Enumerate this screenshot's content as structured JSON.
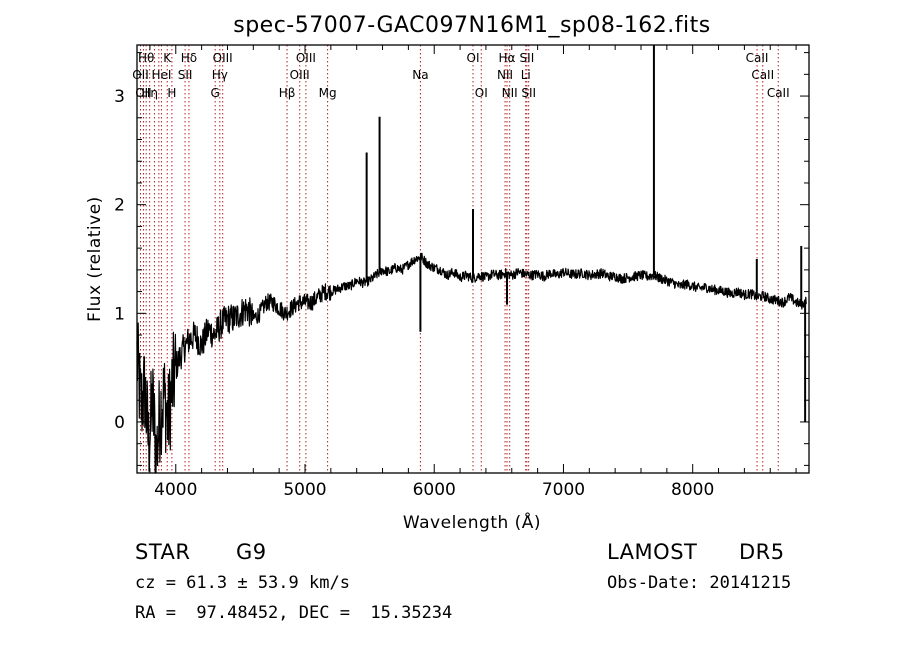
{
  "chart_data": {
    "type": "line",
    "title": "spec-57007-GAC097N16M1_sp08-162.fits",
    "xlabel": "Wavelength (Å)",
    "ylabel": "Flux (relative)",
    "xlim": [
      3700,
      8900
    ],
    "ylim": [
      -0.47,
      3.47
    ],
    "xticks": [
      4000,
      5000,
      6000,
      7000,
      8000
    ],
    "yticks": [
      0,
      1,
      2,
      3
    ],
    "grid": false,
    "line_color": "#000000",
    "marker_line_color": "#b22222",
    "series": [
      {
        "x": [
          3700,
          3730,
          3760,
          3790,
          3820,
          3850,
          3880,
          3910,
          3940,
          3970,
          4000,
          4050,
          4100,
          4150,
          4200,
          4250,
          4300,
          4350,
          4400,
          4450,
          4500,
          4550,
          4600,
          4650,
          4700,
          4750,
          4800,
          4850,
          4900,
          4950,
          5000,
          5050,
          5100,
          5150,
          5200,
          5250,
          5300,
          5350,
          5400,
          5450,
          5500,
          5550,
          5600,
          5650,
          5700,
          5750,
          5800,
          5850,
          5900,
          5950,
          6000,
          6050,
          6100,
          6150,
          6200,
          6250,
          6300,
          6350,
          6400,
          6450,
          6500,
          6550,
          6600,
          6650,
          6700,
          6750,
          6800,
          6850,
          6900,
          6950,
          7000,
          7050,
          7100,
          7150,
          7200,
          7250,
          7300,
          7350,
          7400,
          7450,
          7500,
          7550,
          7600,
          7650,
          7700,
          7750,
          7800,
          7850,
          7900,
          7950,
          8000,
          8050,
          8100,
          8150,
          8200,
          8250,
          8300,
          8350,
          8400,
          8450,
          8500,
          8550,
          8600,
          8650,
          8700,
          8750,
          8800,
          8850,
          8880
        ],
        "y": [
          0.6,
          0.15,
          0.3,
          -0.2,
          0.2,
          -0.3,
          0.1,
          0.25,
          0.0,
          0.3,
          0.5,
          0.65,
          0.75,
          0.8,
          0.7,
          0.85,
          0.8,
          0.9,
          0.95,
          0.95,
          1.0,
          1.05,
          0.95,
          1.0,
          1.1,
          1.1,
          1.05,
          1.0,
          1.05,
          1.1,
          1.1,
          1.1,
          1.15,
          1.2,
          1.2,
          1.22,
          1.25,
          1.25,
          1.3,
          1.28,
          1.3,
          1.35,
          1.4,
          1.38,
          1.42,
          1.4,
          1.45,
          1.5,
          1.52,
          1.45,
          1.42,
          1.4,
          1.35,
          1.38,
          1.33,
          1.35,
          1.32,
          1.35,
          1.33,
          1.36,
          1.35,
          1.37,
          1.35,
          1.38,
          1.36,
          1.35,
          1.36,
          1.34,
          1.37,
          1.35,
          1.38,
          1.36,
          1.36,
          1.37,
          1.35,
          1.36,
          1.37,
          1.34,
          1.34,
          1.32,
          1.33,
          1.34,
          1.35,
          1.34,
          1.35,
          1.32,
          1.3,
          1.28,
          1.25,
          1.27,
          1.25,
          1.23,
          1.24,
          1.22,
          1.21,
          1.2,
          1.18,
          1.2,
          1.17,
          1.18,
          1.15,
          1.16,
          1.13,
          1.12,
          1.1,
          1.15,
          1.1,
          1.08,
          1.12
        ],
        "spikes": [
          {
            "x": 5477,
            "y": 2.48
          },
          {
            "x": 5577,
            "y": 2.81
          },
          {
            "x": 5893,
            "y": 0.83
          },
          {
            "x": 6300,
            "y": 1.96
          },
          {
            "x": 6563,
            "y": 1.08
          },
          {
            "x": 7700,
            "y": 3.47
          },
          {
            "x": 8496,
            "y": 1.5
          },
          {
            "x": 8840,
            "y": 1.62
          },
          {
            "x": 8870,
            "y": 0.0
          }
        ]
      }
    ],
    "line_markers": [
      {
        "x": 3727,
        "label": "OII",
        "row": 1
      },
      {
        "x": 3750,
        "label": "OII",
        "row": 2
      },
      {
        "x": 3771,
        "label": "Hθ",
        "row": 0
      },
      {
        "x": 3798,
        "label": "Hη",
        "row": 2
      },
      {
        "x": 3835,
        "label": "",
        "row": 0
      },
      {
        "x": 3869,
        "label": "",
        "row": 0
      },
      {
        "x": 3889,
        "label": "HeI",
        "row": 1
      },
      {
        "x": 3934,
        "label": "K",
        "row": 0
      },
      {
        "x": 3970,
        "label": "H",
        "row": 2
      },
      {
        "x": 4072,
        "label": "SII",
        "row": 1
      },
      {
        "x": 4102,
        "label": "Hδ",
        "row": 0
      },
      {
        "x": 4305,
        "label": "G",
        "row": 2
      },
      {
        "x": 4341,
        "label": "Hγ",
        "row": 1
      },
      {
        "x": 4363,
        "label": "OIII",
        "row": 0
      },
      {
        "x": 4861,
        "label": "Hβ",
        "row": 2
      },
      {
        "x": 4959,
        "label": "OIII",
        "row": 1
      },
      {
        "x": 5007,
        "label": "OIII",
        "row": 0
      },
      {
        "x": 5175,
        "label": "Mg",
        "row": 2
      },
      {
        "x": 5893,
        "label": "Na",
        "row": 1
      },
      {
        "x": 6300,
        "label": "OI",
        "row": 0
      },
      {
        "x": 6364,
        "label": "OI",
        "row": 2
      },
      {
        "x": 6548,
        "label": "NII",
        "row": 1
      },
      {
        "x": 6563,
        "label": "Hα",
        "row": 0
      },
      {
        "x": 6584,
        "label": "NII",
        "row": 2
      },
      {
        "x": 6708,
        "label": "Li",
        "row": 1
      },
      {
        "x": 6717,
        "label": "SII",
        "row": 0
      },
      {
        "x": 6731,
        "label": "SII",
        "row": 2
      },
      {
        "x": 8498,
        "label": "CaII",
        "row": 0
      },
      {
        "x": 8542,
        "label": "CaII",
        "row": 1
      },
      {
        "x": 8662,
        "label": "CaII",
        "row": 2
      }
    ]
  },
  "info": {
    "class_label": "STAR",
    "subclass": "G9",
    "survey": "LAMOST",
    "release": "DR5",
    "cz_line": "cz = 61.3 ± 53.9 km/s",
    "obs_date_line": "Obs-Date: 20141215",
    "radec_line": "RA =  97.48452, DEC =  15.35234"
  }
}
